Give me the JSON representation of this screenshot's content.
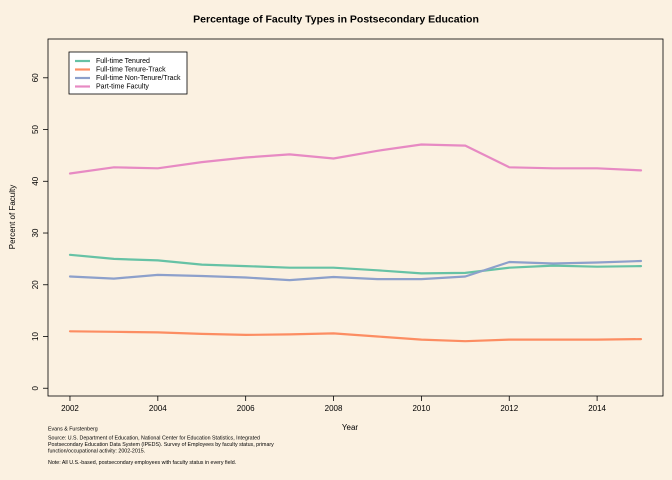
{
  "chart_data": {
    "type": "line",
    "title": "Percentage of Faculty Types in Postsecondary Education",
    "xlabel": "Year",
    "ylabel": "Percent of Faculty",
    "xlim": [
      2001.5,
      2015.5
    ],
    "ylim": [
      -1.5,
      67.5
    ],
    "x_ticks": [
      2002,
      2004,
      2006,
      2008,
      2010,
      2012,
      2014
    ],
    "y_ticks": [
      0,
      10,
      20,
      30,
      40,
      50,
      60
    ],
    "grid": false,
    "legend_position": "top-left",
    "x": [
      2002,
      2003,
      2004,
      2005,
      2006,
      2007,
      2008,
      2009,
      2010,
      2011,
      2012,
      2013,
      2014,
      2015
    ],
    "series": [
      {
        "name": "Full-time Tenured",
        "color": "#66c2a5",
        "values": [
          25.8,
          25.0,
          24.7,
          23.9,
          23.6,
          23.3,
          23.3,
          22.8,
          22.2,
          22.3,
          23.3,
          23.7,
          23.5,
          23.6
        ]
      },
      {
        "name": "Full-time Tenure-Track",
        "color": "#fc8d62",
        "values": [
          11.0,
          10.9,
          10.8,
          10.5,
          10.3,
          10.4,
          10.6,
          10.0,
          9.4,
          9.1,
          9.4,
          9.4,
          9.4,
          9.5
        ]
      },
      {
        "name": "Full-time Non-Tenure/Track",
        "color": "#8da0cb",
        "values": [
          21.6,
          21.2,
          21.9,
          21.7,
          21.4,
          20.9,
          21.5,
          21.1,
          21.1,
          21.6,
          24.4,
          24.1,
          24.3,
          24.6
        ]
      },
      {
        "name": "Part-time Faculty",
        "color": "#e78ac3",
        "values": [
          41.5,
          42.7,
          42.5,
          43.7,
          44.6,
          45.2,
          44.4,
          45.9,
          47.1,
          46.9,
          42.7,
          42.5,
          42.5,
          42.1
        ]
      }
    ]
  },
  "annotations": {
    "credit": "Evans & Furstenberg",
    "source_line1": "Source: U.S. Department of Education, National Center for Education Statistics, Integrated",
    "source_line2": " Postsecondary Education Data System (IPEDS).  Survey of Employees by faculty status, primary",
    "source_line3": " function/occupational activity: 2002-2015.",
    "note": "Note: All U.S.-based, postsecondary employees with faculty status in every field."
  }
}
